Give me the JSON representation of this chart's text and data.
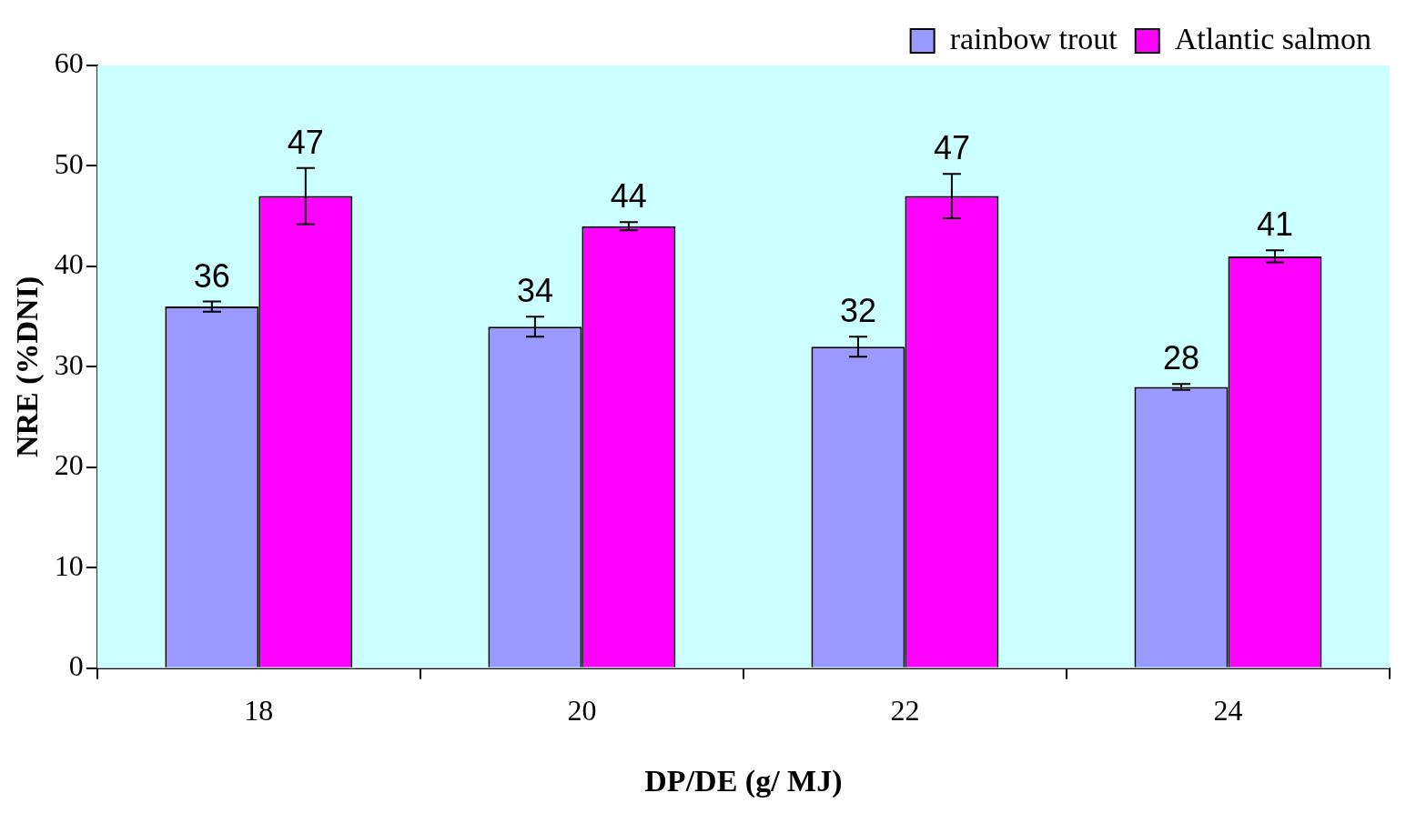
{
  "chart_data": {
    "type": "bar",
    "xlabel": "DP/DE (g/ MJ)",
    "ylabel": "NRE (%DNI)",
    "categories": [
      "18",
      "20",
      "22",
      "24"
    ],
    "series": [
      {
        "name": "rainbow trout",
        "color": "#9999ff",
        "values": [
          36,
          34,
          32,
          28
        ],
        "errors": [
          0.5,
          1,
          1,
          0.3
        ]
      },
      {
        "name": "Atlantic salmon",
        "color": "#ff00ff",
        "values": [
          47,
          44,
          47,
          41
        ],
        "errors": [
          2.8,
          0.4,
          2.2,
          0.6
        ]
      }
    ],
    "ylim": [
      0,
      60
    ],
    "yticks": [
      0,
      10,
      20,
      30,
      40,
      50,
      60
    ],
    "grid": false,
    "legend": "top right",
    "data_labels": true
  }
}
